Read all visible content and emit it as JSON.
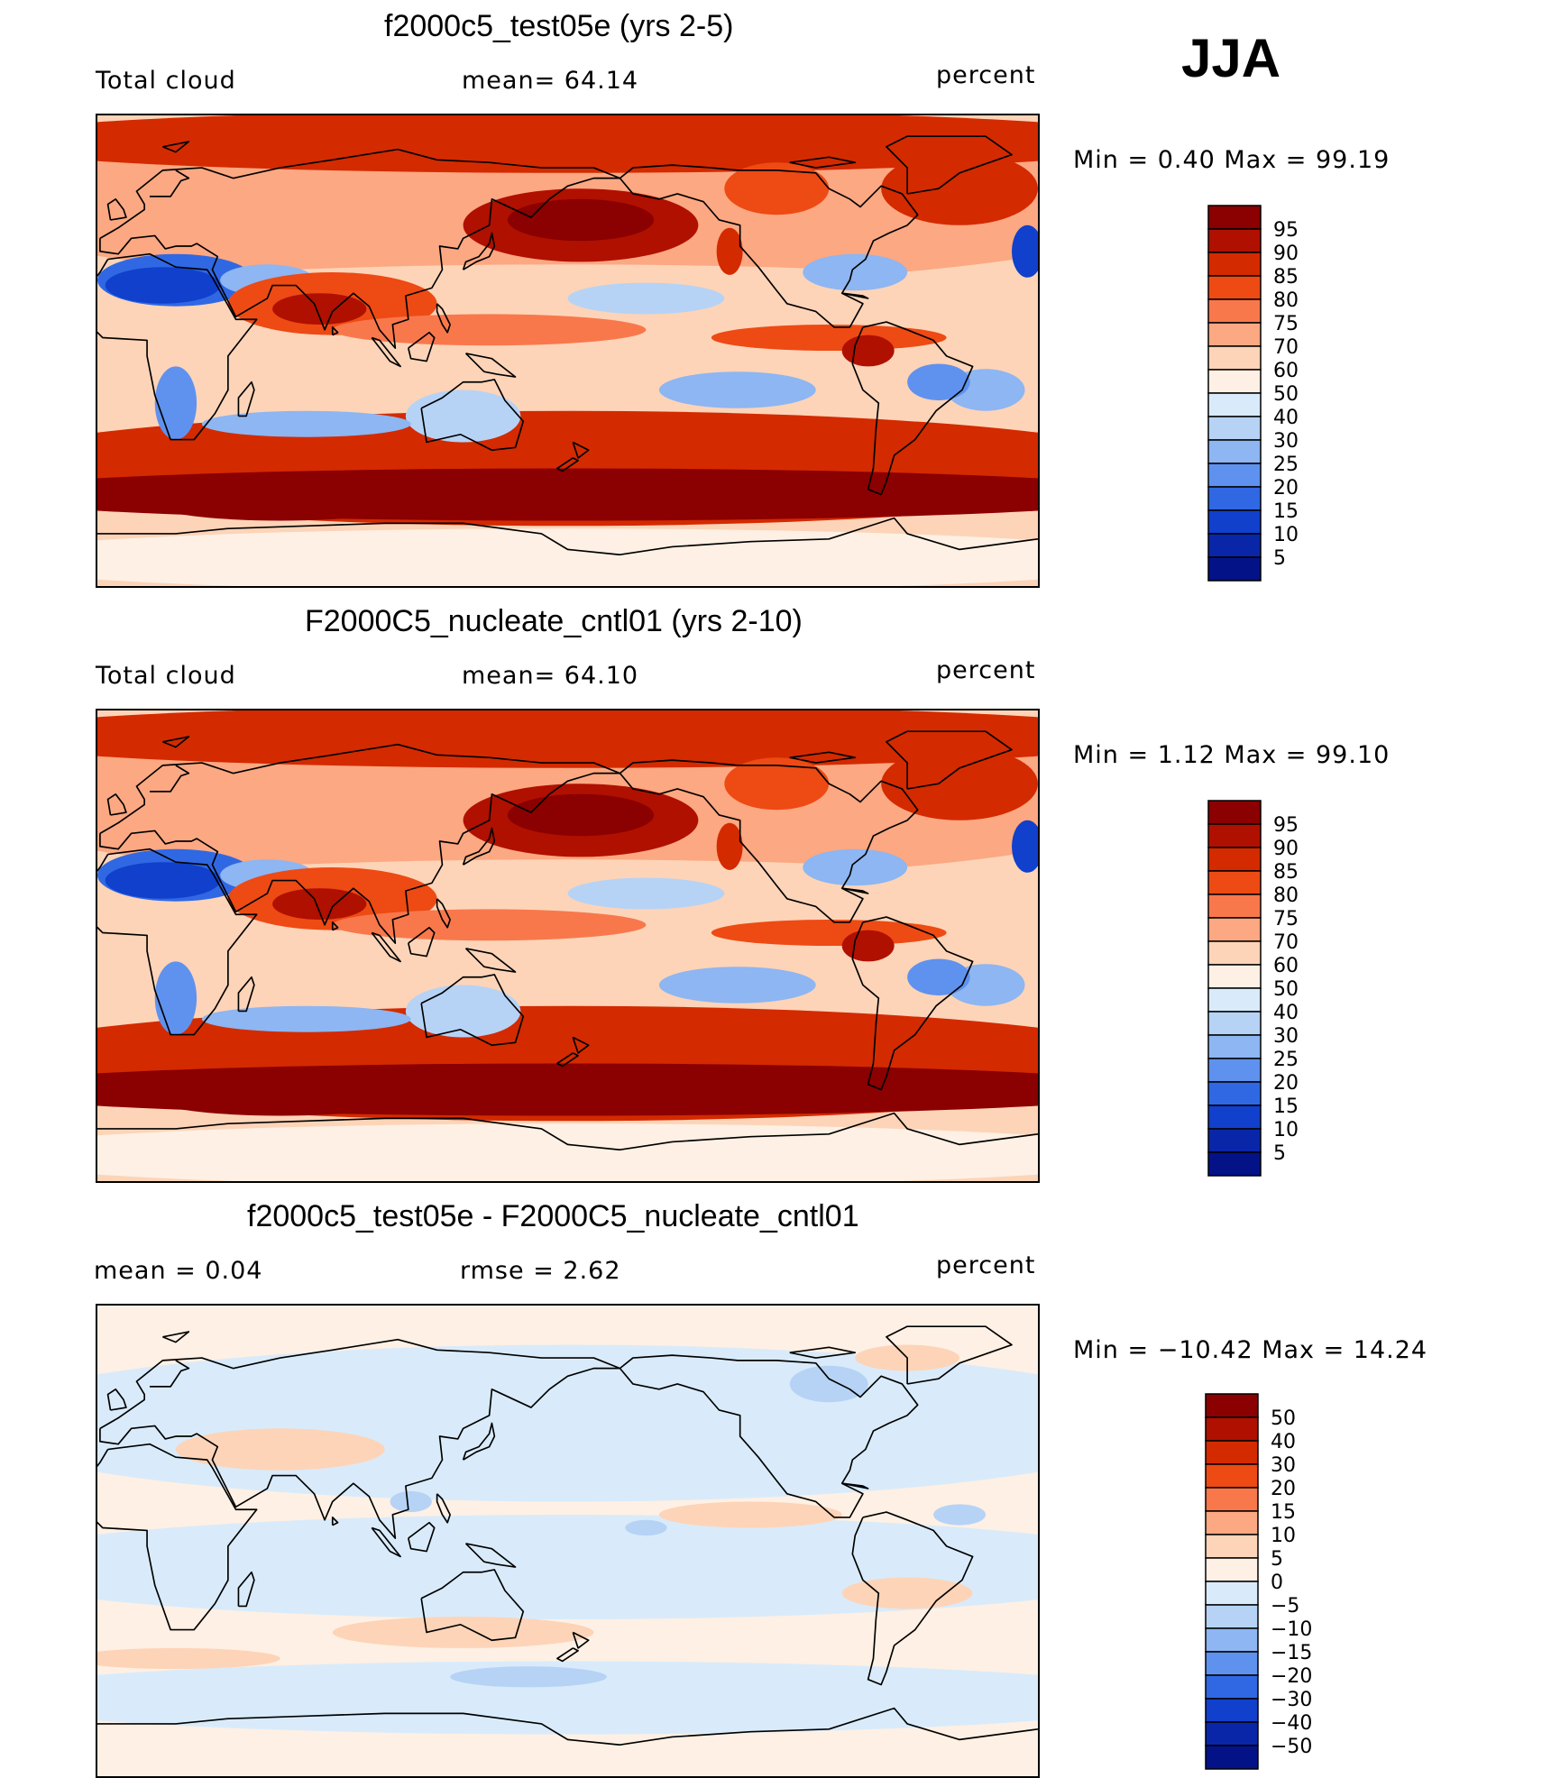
{
  "season": "JJA",
  "panels": [
    {
      "title": "f2000c5_test05e (yrs 2-5)",
      "left_label": "Total cloud",
      "center_label": "mean=   64.14",
      "units": "percent",
      "range_text": "Min =    0.40  Max =    99.19",
      "map_style": "full",
      "colorbar": {
        "levels": [
          "95",
          "90",
          "85",
          "80",
          "75",
          "70",
          "60",
          "50",
          "40",
          "30",
          "25",
          "20",
          "15",
          "10",
          "5"
        ],
        "colors": [
          "#8b0000",
          "#b01000",
          "#d42a00",
          "#ee4a14",
          "#f8784c",
          "#fca882",
          "#fdd4b8",
          "#fef0e4",
          "#d9ebfa",
          "#b6d3f5",
          "#8db6f2",
          "#5f92ee",
          "#3068e4",
          "#1040cc",
          "#0a26a8",
          "#041288"
        ]
      }
    },
    {
      "title": "F2000C5_nucleate_cntl01 (yrs 2-10)",
      "left_label": "Total cloud",
      "center_label": "mean=   64.10",
      "units": "percent",
      "range_text": "Min =    1.12  Max =    99.10",
      "map_style": "full",
      "colorbar": {
        "levels": [
          "95",
          "90",
          "85",
          "80",
          "75",
          "70",
          "60",
          "50",
          "40",
          "30",
          "25",
          "20",
          "15",
          "10",
          "5"
        ],
        "colors": [
          "#8b0000",
          "#b01000",
          "#d42a00",
          "#ee4a14",
          "#f8784c",
          "#fca882",
          "#fdd4b8",
          "#fef0e4",
          "#d9ebfa",
          "#b6d3f5",
          "#8db6f2",
          "#5f92ee",
          "#3068e4",
          "#1040cc",
          "#0a26a8",
          "#041288"
        ]
      }
    },
    {
      "title": "f2000c5_test05e - F2000C5_nucleate_cntl01",
      "left_label": "mean =     0.04",
      "center_label": "rmse =     2.62",
      "units": "percent",
      "range_text": "Min = −10.42  Max =    14.24",
      "map_style": "diff",
      "colorbar": {
        "levels": [
          "50",
          "40",
          "30",
          "20",
          "15",
          "10",
          "5",
          "0",
          "−5",
          "−10",
          "−15",
          "−20",
          "−30",
          "−40",
          "−50"
        ],
        "colors": [
          "#8b0000",
          "#b01000",
          "#d42a00",
          "#ee4a14",
          "#f8784c",
          "#fca882",
          "#fdd4b8",
          "#fef0e4",
          "#d9ebfa",
          "#b6d3f5",
          "#8db6f2",
          "#5f92ee",
          "#3068e4",
          "#1040cc",
          "#0a26a8",
          "#041288"
        ]
      }
    }
  ]
}
